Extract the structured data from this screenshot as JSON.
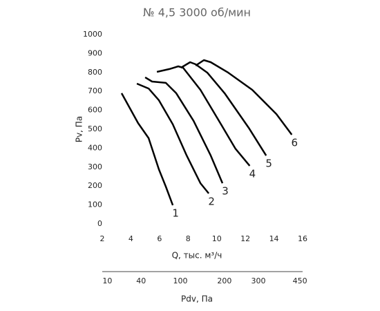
{
  "chart_data": {
    "type": "line",
    "title": "№ 4,5 3000 об/мин",
    "xlabel": "Q, тыс. м³/ч",
    "ylabel": "Pv, Па",
    "xlim": [
      2,
      16
    ],
    "xticks": [
      2,
      4,
      6,
      8,
      10,
      12,
      14,
      16
    ],
    "ylim": [
      0,
      1000
    ],
    "yticks": [
      0,
      100,
      200,
      300,
      400,
      500,
      600,
      700,
      800,
      900,
      1000
    ],
    "x2label": "Pdv, Па",
    "x2scale": "sqrt",
    "x2lim": [
      7.2,
      460.8
    ],
    "x2ticks": [
      10,
      40,
      100,
      200,
      300,
      450
    ],
    "series": [
      {
        "name": "1",
        "color": "#000000",
        "x": [
          3.35,
          4.5,
          5.24,
          5.96,
          6.44,
          6.93
        ],
        "values": [
          690,
          533,
          453,
          288,
          197,
          99
        ]
      },
      {
        "name": "2",
        "color": "#000000",
        "x": [
          4.42,
          5.24,
          5.96,
          6.93,
          7.9,
          8.86,
          9.44
        ],
        "values": [
          741,
          715,
          653,
          526,
          361,
          215,
          161
        ]
      },
      {
        "name": "3",
        "color": "#000000",
        "x": [
          5.0,
          5.48,
          6.44,
          7.17,
          8.38,
          9.58,
          10.4
        ],
        "values": [
          774,
          752,
          745,
          690,
          544,
          361,
          215
        ]
      },
      {
        "name": "4",
        "color": "#000000",
        "x": [
          5.82,
          6.69,
          7.31,
          7.65,
          8.86,
          10.3,
          11.3,
          12.3
        ],
        "values": [
          803,
          818,
          832,
          825,
          708,
          526,
          398,
          307
        ]
      },
      {
        "name": "5",
        "color": "#000000",
        "x": [
          7.5,
          8.14,
          8.52,
          9.34,
          10.55,
          12.24,
          13.45
        ],
        "values": [
          825,
          854,
          843,
          799,
          690,
          507,
          361
        ]
      },
      {
        "name": "6",
        "color": "#000000",
        "x": [
          8.52,
          9.1,
          9.58,
          10.8,
          12.48,
          14.17,
          15.24
        ],
        "values": [
          836,
          865,
          854,
          799,
          708,
          580,
          471
        ]
      }
    ]
  }
}
